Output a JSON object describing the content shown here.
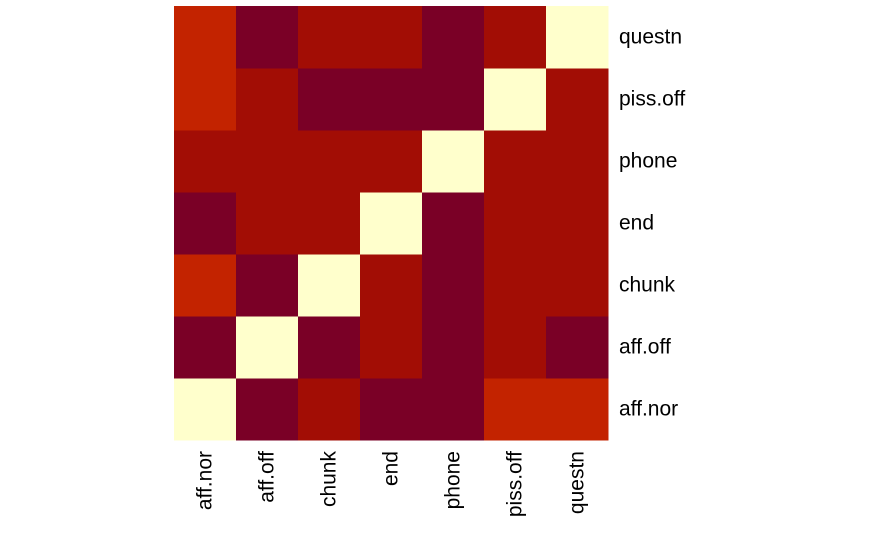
{
  "chart_data": {
    "type": "heatmap",
    "title": "",
    "xlabel": "",
    "ylabel": "",
    "x_labels": [
      "aff.nor",
      "aff.off",
      "chunk",
      "end",
      "phone",
      "piss.off",
      "questn"
    ],
    "y_labels": [
      "aff.nor",
      "aff.off",
      "chunk",
      "end",
      "phone",
      "piss.off",
      "questn"
    ],
    "y_order": "bottom-to-top",
    "legend": "none",
    "grid": false,
    "color_scale": [
      "#7A0026",
      "#A20D05",
      "#C32300",
      "#FFFFCC"
    ],
    "values": [
      [
        3,
        0,
        1,
        0,
        0,
        2,
        2
      ],
      [
        0,
        3,
        0,
        1,
        0,
        1,
        0
      ],
      [
        2,
        0,
        3,
        1,
        0,
        1,
        1
      ],
      [
        0,
        1,
        1,
        3,
        0,
        1,
        1
      ],
      [
        1,
        1,
        1,
        1,
        3,
        1,
        1
      ],
      [
        2,
        1,
        0,
        0,
        0,
        3,
        1
      ],
      [
        2,
        0,
        1,
        1,
        0,
        1,
        3
      ]
    ]
  }
}
